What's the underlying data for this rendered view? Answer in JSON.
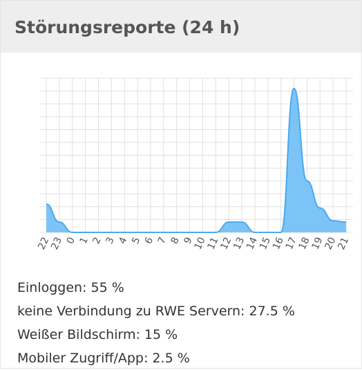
{
  "header": {
    "title": "Störungsreporte (24 h)"
  },
  "chart_data": {
    "type": "area",
    "categories": [
      "22",
      "23",
      "0",
      "1",
      "2",
      "3",
      "4",
      "5",
      "6",
      "7",
      "8",
      "9",
      "10",
      "11",
      "12",
      "13",
      "14",
      "15",
      "16",
      "17",
      "18",
      "19",
      "20",
      "21"
    ],
    "values": [
      2.2,
      0.8,
      0,
      0,
      0,
      0,
      0,
      0,
      0,
      0,
      0,
      0,
      0,
      0,
      0.8,
      0.8,
      0,
      0,
      0,
      11.2,
      4.0,
      1.9,
      0.9,
      0.8
    ],
    "color": "#7cc4f7",
    "ylim": [
      0,
      12
    ],
    "yticks": [
      0,
      1,
      2,
      3,
      4,
      5,
      6,
      7,
      8,
      9,
      10,
      11,
      12
    ],
    "grid": true
  },
  "items": [
    "Einloggen: 55 %",
    "keine Verbindung zu RWE Servern: 27.5 %",
    "Weißer Bildschirm: 15 %",
    "Mobiler Zugriff/App: 2.5 %"
  ]
}
